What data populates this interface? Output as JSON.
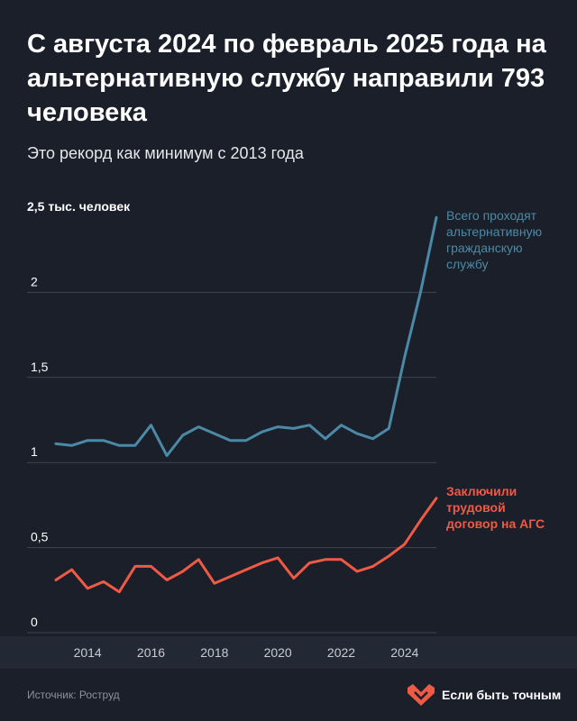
{
  "title": "С августа 2024 по февраль 2025 года на альтернативную службу направили 793 человека",
  "subtitle": "Это рекорд как минимум с 2013 года",
  "source": "Источник: Роструд",
  "brand": {
    "name": "Если быть точным",
    "color": "#ef5a45"
  },
  "chart_data": {
    "type": "line",
    "xlim": [
      2013.0,
      2025.0
    ],
    "ylim": [
      0,
      2.5
    ],
    "unit_label": "2,5 тыс. человек",
    "y_ticks": [
      {
        "value": 0,
        "label": "0"
      },
      {
        "value": 0.5,
        "label": "0,5"
      },
      {
        "value": 1,
        "label": "1"
      },
      {
        "value": 1.5,
        "label": "1,5"
      },
      {
        "value": 2,
        "label": "2"
      }
    ],
    "x_ticks": [
      {
        "value": 2014,
        "label": "2014"
      },
      {
        "value": 2016,
        "label": "2016"
      },
      {
        "value": 2018,
        "label": "2018"
      },
      {
        "value": 2020,
        "label": "2020"
      },
      {
        "value": 2022,
        "label": "2022"
      },
      {
        "value": 2024,
        "label": "2024"
      }
    ],
    "x": [
      2013.0,
      2013.5,
      2014.0,
      2014.5,
      2015.0,
      2015.5,
      2016.0,
      2016.5,
      2017.0,
      2017.5,
      2018.0,
      2018.5,
      2019.0,
      2019.5,
      2020.0,
      2020.5,
      2021.0,
      2021.5,
      2022.0,
      2022.5,
      2023.0,
      2023.5,
      2024.0,
      2024.5,
      2025.0
    ],
    "series": [
      {
        "name": "Всего проходят альтернативную гражданскую службу",
        "label_lines": [
          "Всего проходят",
          "альтернативную",
          "гражданскую",
          "службу"
        ],
        "color": "#4b8aa6",
        "values": [
          1.11,
          1.1,
          1.13,
          1.13,
          1.1,
          1.1,
          1.22,
          1.04,
          1.16,
          1.21,
          1.17,
          1.13,
          1.13,
          1.18,
          1.21,
          1.2,
          1.22,
          1.14,
          1.22,
          1.17,
          1.14,
          1.2,
          1.62,
          2.0,
          2.44
        ]
      },
      {
        "name": "Заключили трудовой договор на АГС",
        "label_lines": [
          "Заключили",
          "трудовой",
          "договор на АГС"
        ],
        "color": "#ef5a45",
        "values": [
          0.31,
          0.37,
          0.26,
          0.3,
          0.24,
          0.39,
          0.39,
          0.31,
          0.36,
          0.43,
          0.29,
          0.33,
          0.37,
          0.41,
          0.44,
          0.32,
          0.41,
          0.43,
          0.43,
          0.36,
          0.39,
          0.45,
          0.52,
          0.66,
          0.79
        ]
      }
    ],
    "grid": "horizontal"
  }
}
